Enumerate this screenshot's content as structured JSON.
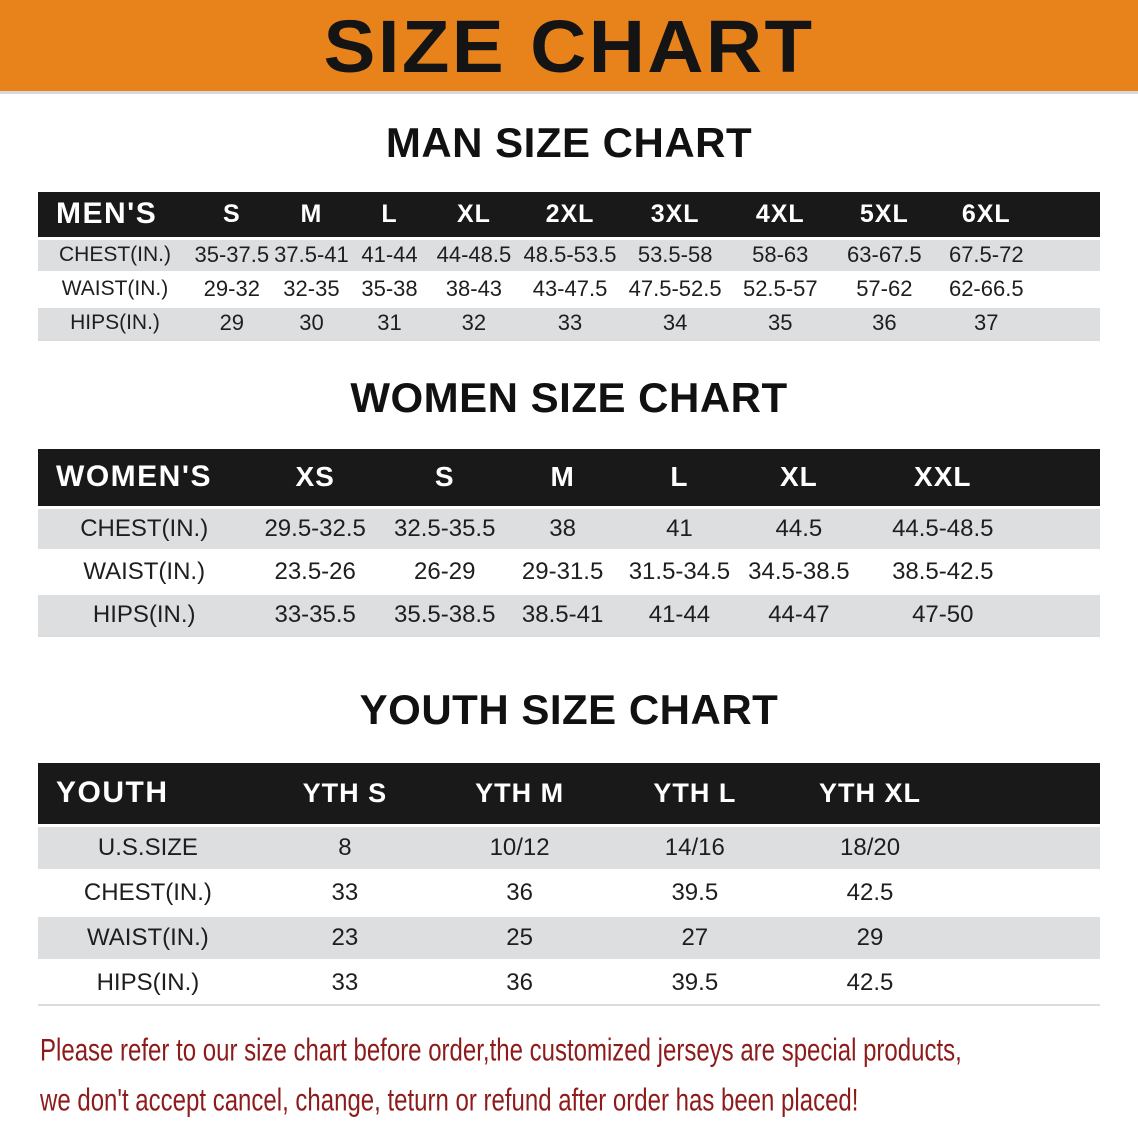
{
  "banner": {
    "title": "SIZE CHART"
  },
  "colors": {
    "banner_bg": "#E8831C",
    "banner_text": "#141414",
    "header_bg": "#191919",
    "header_text": "#FFFFFF",
    "row_alt_bg": "#DDDEE0",
    "row_bg": "#FFFFFF",
    "title_text": "#111111",
    "cell_text": "#1E1E1E",
    "disclaimer_text": "#8E1B1B"
  },
  "sections": {
    "men": {
      "title": "MAN SIZE CHART",
      "table": {
        "corner": "MEN'S",
        "columns": [
          "S",
          "M",
          "L",
          "XL",
          "2XL",
          "3XL",
          "4XL",
          "5XL",
          "6XL"
        ],
        "rows": [
          {
            "label": "CHEST(IN.)",
            "values": [
              "35-37.5",
              "37.5-41",
              "41-44",
              "44-48.5",
              "48.5-53.5",
              "53.5-58",
              "58-63",
              "63-67.5",
              "67.5-72"
            ]
          },
          {
            "label": "WAIST(IN.)",
            "values": [
              "29-32",
              "32-35",
              "35-38",
              "38-43",
              "43-47.5",
              "47.5-52.5",
              "52.5-57",
              "57-62",
              "62-66.5"
            ]
          },
          {
            "label": "HIPS(IN.)",
            "values": [
              "29",
              "30",
              "31",
              "32",
              "33",
              "34",
              "35",
              "36",
              "37"
            ]
          }
        ]
      }
    },
    "women": {
      "title": "WOMEN SIZE CHART",
      "table": {
        "corner": "WOMEN'S",
        "columns": [
          "XS",
          "S",
          "M",
          "L",
          "XL",
          "XXL"
        ],
        "rows": [
          {
            "label": "CHEST(IN.)",
            "values": [
              "29.5-32.5",
              "32.5-35.5",
              "38",
              "41",
              "44.5",
              "44.5-48.5"
            ]
          },
          {
            "label": "WAIST(IN.)",
            "values": [
              "23.5-26",
              "26-29",
              "29-31.5",
              "31.5-34.5",
              "34.5-38.5",
              "38.5-42.5"
            ]
          },
          {
            "label": "HIPS(IN.)",
            "values": [
              "33-35.5",
              "35.5-38.5",
              "38.5-41",
              "41-44",
              "44-47",
              "47-50"
            ]
          }
        ]
      }
    },
    "youth": {
      "title": "YOUTH SIZE CHART",
      "table": {
        "corner": "YOUTH",
        "columns": [
          "YTH S",
          "YTH M",
          "YTH L",
          "YTH XL"
        ],
        "rows": [
          {
            "label": "U.S.SIZE",
            "values": [
              "8",
              "10/12",
              "14/16",
              "18/20"
            ]
          },
          {
            "label": "CHEST(IN.)",
            "values": [
              "33",
              "36",
              "39.5",
              "42.5"
            ]
          },
          {
            "label": "WAIST(IN.)",
            "values": [
              "23",
              "25",
              "27",
              "29"
            ]
          },
          {
            "label": "HIPS(IN.)",
            "values": [
              "33",
              "36",
              "39.5",
              "42.5"
            ]
          }
        ]
      }
    }
  },
  "disclaimer": {
    "line1": "Please refer to our size chart before order,the customized jerseys are special products,",
    "line2": "we don't accept cancel, change, teturn or refund after order has been placed!"
  }
}
